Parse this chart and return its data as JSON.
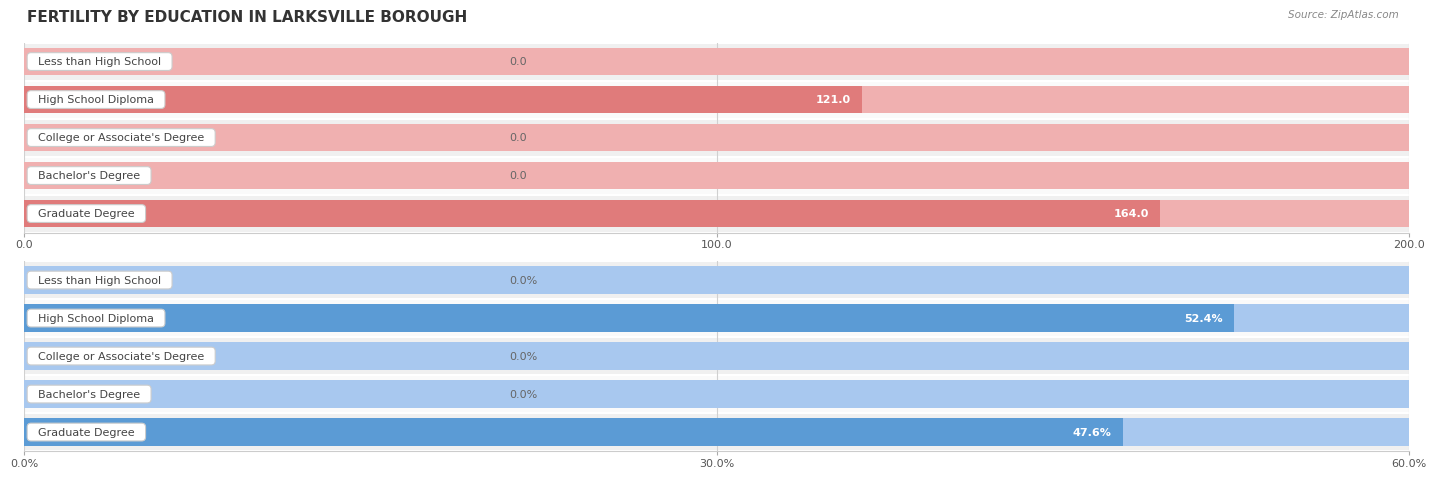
{
  "title": "FERTILITY BY EDUCATION IN LARKSVILLE BOROUGH",
  "source": "Source: ZipAtlas.com",
  "top_chart": {
    "categories": [
      "Less than High School",
      "High School Diploma",
      "College or Associate's Degree",
      "Bachelor's Degree",
      "Graduate Degree"
    ],
    "values": [
      0.0,
      121.0,
      0.0,
      0.0,
      164.0
    ],
    "xlim": [
      0,
      200
    ],
    "xticks": [
      0.0,
      100.0,
      200.0
    ],
    "xtick_labels": [
      "0.0",
      "100.0",
      "200.0"
    ],
    "bar_color_main": "#e07b7b",
    "bar_color_light": "#f0b0b0",
    "value_label_inside_color": "#ffffff",
    "value_label_outside_color": "#666666"
  },
  "bottom_chart": {
    "categories": [
      "Less than High School",
      "High School Diploma",
      "College or Associate's Degree",
      "Bachelor's Degree",
      "Graduate Degree"
    ],
    "values": [
      0.0,
      52.4,
      0.0,
      0.0,
      47.6
    ],
    "xlim": [
      0,
      60
    ],
    "xticks": [
      0.0,
      30.0,
      60.0
    ],
    "xtick_labels": [
      "0.0%",
      "30.0%",
      "60.0%"
    ],
    "bar_color_main": "#5b9bd5",
    "bar_color_light": "#a8c8ef",
    "value_label_inside_color": "#ffffff",
    "value_label_outside_color": "#666666"
  },
  "label_text_color": "#444444",
  "label_border_color": "#cccccc",
  "row_bg_color_odd": "#f0f0f0",
  "row_bg_color_even": "#fafafa",
  "title_color": "#333333",
  "source_color": "#888888",
  "title_fontsize": 11,
  "label_fontsize": 8,
  "value_fontsize": 8,
  "axis_fontsize": 8
}
